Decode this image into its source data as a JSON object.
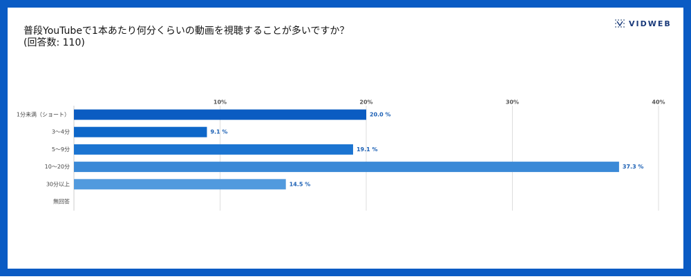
{
  "logo": "VIDWEB",
  "chart_data": {
    "type": "hbar",
    "title": "普段YouTubeで1本あたり何分くらいの動画を視聴することが多いですか？",
    "subtitle": "(回答数: 110)",
    "categories": [
      "1分未満（ショート）",
      "3〜4分",
      "5〜9分",
      "10〜20分",
      "30分以上",
      "無回答"
    ],
    "values": [
      20.0,
      9.1,
      19.1,
      37.3,
      14.5,
      null
    ],
    "value_labels": [
      "20.0 %",
      "9.1 %",
      "19.1 %",
      "37.3 %",
      "14.5 %",
      null
    ],
    "colors": [
      "#0b5cc2",
      "#0e67c9",
      "#1b74d1",
      "#3a89d7",
      "#519ade",
      "#6aaae3"
    ],
    "label_color": "#1a5fb4",
    "xlim": [
      0,
      40
    ],
    "xticks": [
      {
        "value": 10,
        "label": "10%"
      },
      {
        "value": 20,
        "label": "20%"
      },
      {
        "value": 30,
        "label": "30%"
      },
      {
        "value": 40,
        "label": "40%"
      }
    ],
    "grid": true
  }
}
